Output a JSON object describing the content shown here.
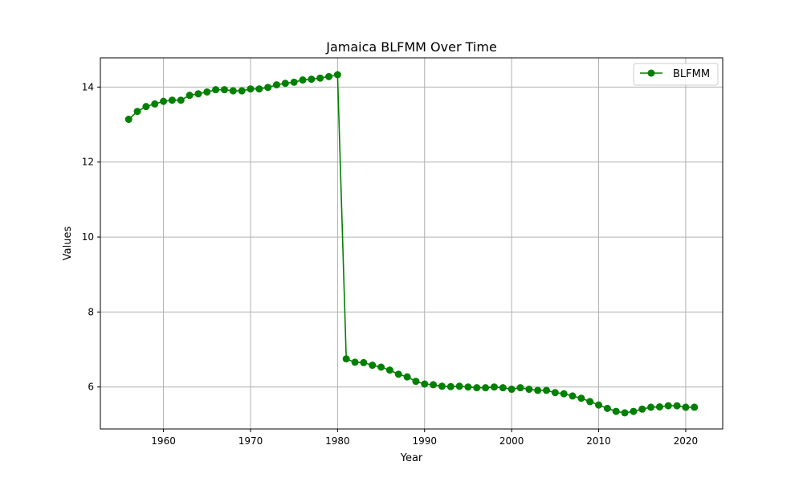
{
  "chart_data": {
    "type": "line",
    "title": "Jamaica BLFMM Over Time",
    "xlabel": "Year",
    "ylabel": "Values",
    "xlim": [
      1952.75,
      2024.25
    ],
    "ylim": [
      4.88,
      14.78
    ],
    "xticks": [
      1960,
      1970,
      1980,
      1990,
      2000,
      2010,
      2020
    ],
    "yticks": [
      6,
      8,
      10,
      12,
      14
    ],
    "grid": true,
    "legend_position": "top-right",
    "series": [
      {
        "name": "BLFMM",
        "color": "#008000",
        "marker": "circle",
        "x": [
          1956,
          1957,
          1958,
          1959,
          1960,
          1961,
          1962,
          1963,
          1964,
          1965,
          1966,
          1967,
          1968,
          1969,
          1970,
          1971,
          1972,
          1973,
          1974,
          1975,
          1976,
          1977,
          1978,
          1979,
          1980,
          1981,
          1982,
          1983,
          1984,
          1985,
          1986,
          1987,
          1988,
          1989,
          1990,
          1991,
          1992,
          1993,
          1994,
          1995,
          1996,
          1997,
          1998,
          1999,
          2000,
          2001,
          2002,
          2003,
          2004,
          2005,
          2006,
          2007,
          2008,
          2009,
          2010,
          2011,
          2012,
          2013,
          2014,
          2015,
          2016,
          2017,
          2018,
          2019,
          2020,
          2021
        ],
        "y": [
          13.14,
          13.35,
          13.48,
          13.55,
          13.62,
          13.65,
          13.65,
          13.78,
          13.82,
          13.87,
          13.93,
          13.93,
          13.9,
          13.9,
          13.95,
          13.95,
          13.99,
          14.06,
          14.1,
          14.13,
          14.19,
          14.21,
          14.24,
          14.28,
          14.33,
          6.75,
          6.66,
          6.65,
          6.58,
          6.53,
          6.45,
          6.34,
          6.27,
          6.15,
          6.08,
          6.06,
          6.02,
          6.01,
          6.02,
          6.0,
          5.98,
          5.98,
          6.0,
          5.98,
          5.94,
          5.98,
          5.94,
          5.91,
          5.91,
          5.85,
          5.82,
          5.76,
          5.7,
          5.61,
          5.52,
          5.43,
          5.35,
          5.31,
          5.35,
          5.41,
          5.46,
          5.47,
          5.5,
          5.5,
          5.46,
          5.46
        ]
      }
    ]
  }
}
